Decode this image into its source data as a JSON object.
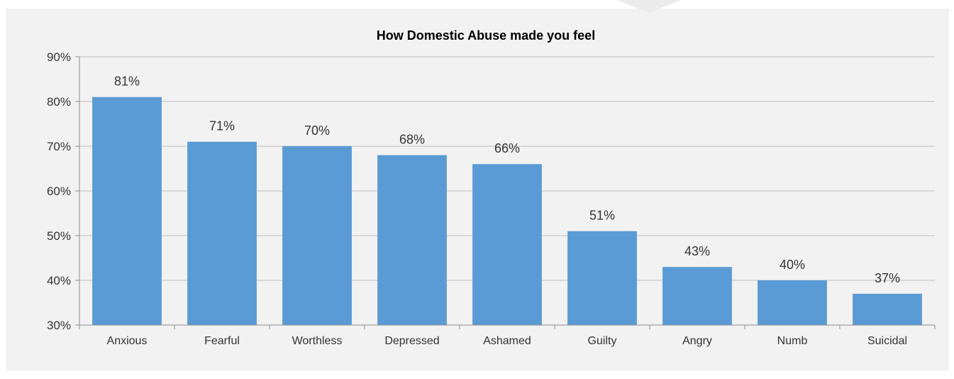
{
  "chart_data": {
    "type": "bar",
    "title": "How Domestic Abuse made you feel",
    "xlabel": "",
    "ylabel": "",
    "categories": [
      "Anxious",
      "Fearful",
      "Worthless",
      "Depressed",
      "Ashamed",
      "Guilty",
      "Angry",
      "Numb",
      "Suicidal"
    ],
    "values": [
      81,
      71,
      70,
      68,
      66,
      51,
      43,
      40,
      37
    ],
    "data_labels": [
      "81%",
      "71%",
      "70%",
      "68%",
      "66%",
      "51%",
      "43%",
      "40%",
      "37%"
    ],
    "ylim": [
      30,
      90
    ],
    "yticks": [
      30,
      40,
      50,
      60,
      70,
      80,
      90
    ],
    "ytick_labels": [
      "30%",
      "40%",
      "50%",
      "60%",
      "70%",
      "80%",
      "90%"
    ],
    "grid": true,
    "bar_color": "#5b9bd5",
    "background_color": "#f2f2f2",
    "gridline_color": "#bfbfbf"
  }
}
